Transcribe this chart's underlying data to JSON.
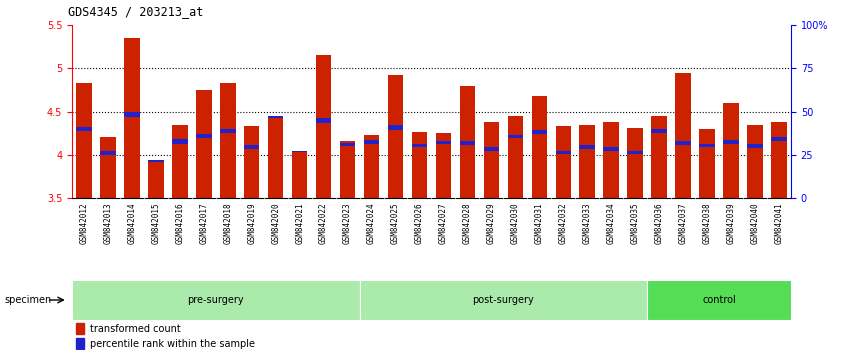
{
  "title": "GDS4345 / 203213_at",
  "samples": [
    "GSM842012",
    "GSM842013",
    "GSM842014",
    "GSM842015",
    "GSM842016",
    "GSM842017",
    "GSM842018",
    "GSM842019",
    "GSM842020",
    "GSM842021",
    "GSM842022",
    "GSM842023",
    "GSM842024",
    "GSM842025",
    "GSM842026",
    "GSM842027",
    "GSM842028",
    "GSM842029",
    "GSM842030",
    "GSM842031",
    "GSM842032",
    "GSM842033",
    "GSM842034",
    "GSM842035",
    "GSM842036",
    "GSM842037",
    "GSM842038",
    "GSM842039",
    "GSM842040",
    "GSM842041"
  ],
  "red_values": [
    4.83,
    4.21,
    5.35,
    3.93,
    4.35,
    4.75,
    4.83,
    4.33,
    4.45,
    4.04,
    5.15,
    4.16,
    4.23,
    4.92,
    4.26,
    4.25,
    4.79,
    4.38,
    4.45,
    4.68,
    4.33,
    4.35,
    4.38,
    4.31,
    4.45,
    4.94,
    4.3,
    4.6,
    4.34,
    4.38
  ],
  "blue_top": [
    4.27,
    4.0,
    4.44,
    3.92,
    4.13,
    4.19,
    4.25,
    4.07,
    4.43,
    4.03,
    4.37,
    4.1,
    4.13,
    4.29,
    4.09,
    4.12,
    4.11,
    4.05,
    4.19,
    4.24,
    4.01,
    4.07,
    4.04,
    4.01,
    4.25,
    4.11,
    4.09,
    4.13,
    4.08,
    4.16
  ],
  "blue_height": [
    0.05,
    0.04,
    0.05,
    0.02,
    0.05,
    0.05,
    0.05,
    0.04,
    0.02,
    0.02,
    0.05,
    0.04,
    0.04,
    0.05,
    0.04,
    0.04,
    0.05,
    0.04,
    0.04,
    0.05,
    0.04,
    0.04,
    0.05,
    0.04,
    0.05,
    0.05,
    0.04,
    0.04,
    0.04,
    0.05
  ],
  "groups": [
    {
      "label": "pre-surgery",
      "start": 0,
      "end": 11,
      "color": "#AAEAAA"
    },
    {
      "label": "post-surgery",
      "start": 12,
      "end": 23,
      "color": "#AAEAAA"
    },
    {
      "label": "control",
      "start": 24,
      "end": 29,
      "color": "#55DD55"
    }
  ],
  "ymin": 3.5,
  "ymax": 5.5,
  "yticks_left": [
    3.5,
    4.0,
    4.5,
    5.0,
    5.5
  ],
  "ytick_labels_left": [
    "3.5",
    "4",
    "4.5",
    "5",
    "5.5"
  ],
  "yticks_right_pct": [
    0,
    25,
    50,
    75,
    100
  ],
  "ytick_labels_right": [
    "0",
    "25",
    "50",
    "75",
    "100%"
  ],
  "grid_lines": [
    4.0,
    4.5,
    5.0
  ],
  "bar_color": "#CC2200",
  "blue_color": "#2222CC",
  "bg_color": "#FFFFFF",
  "xlabel": "specimen",
  "legend_red": "transformed count",
  "legend_blue": "percentile rank within the sample",
  "xtick_bg": "#CCCCCC"
}
